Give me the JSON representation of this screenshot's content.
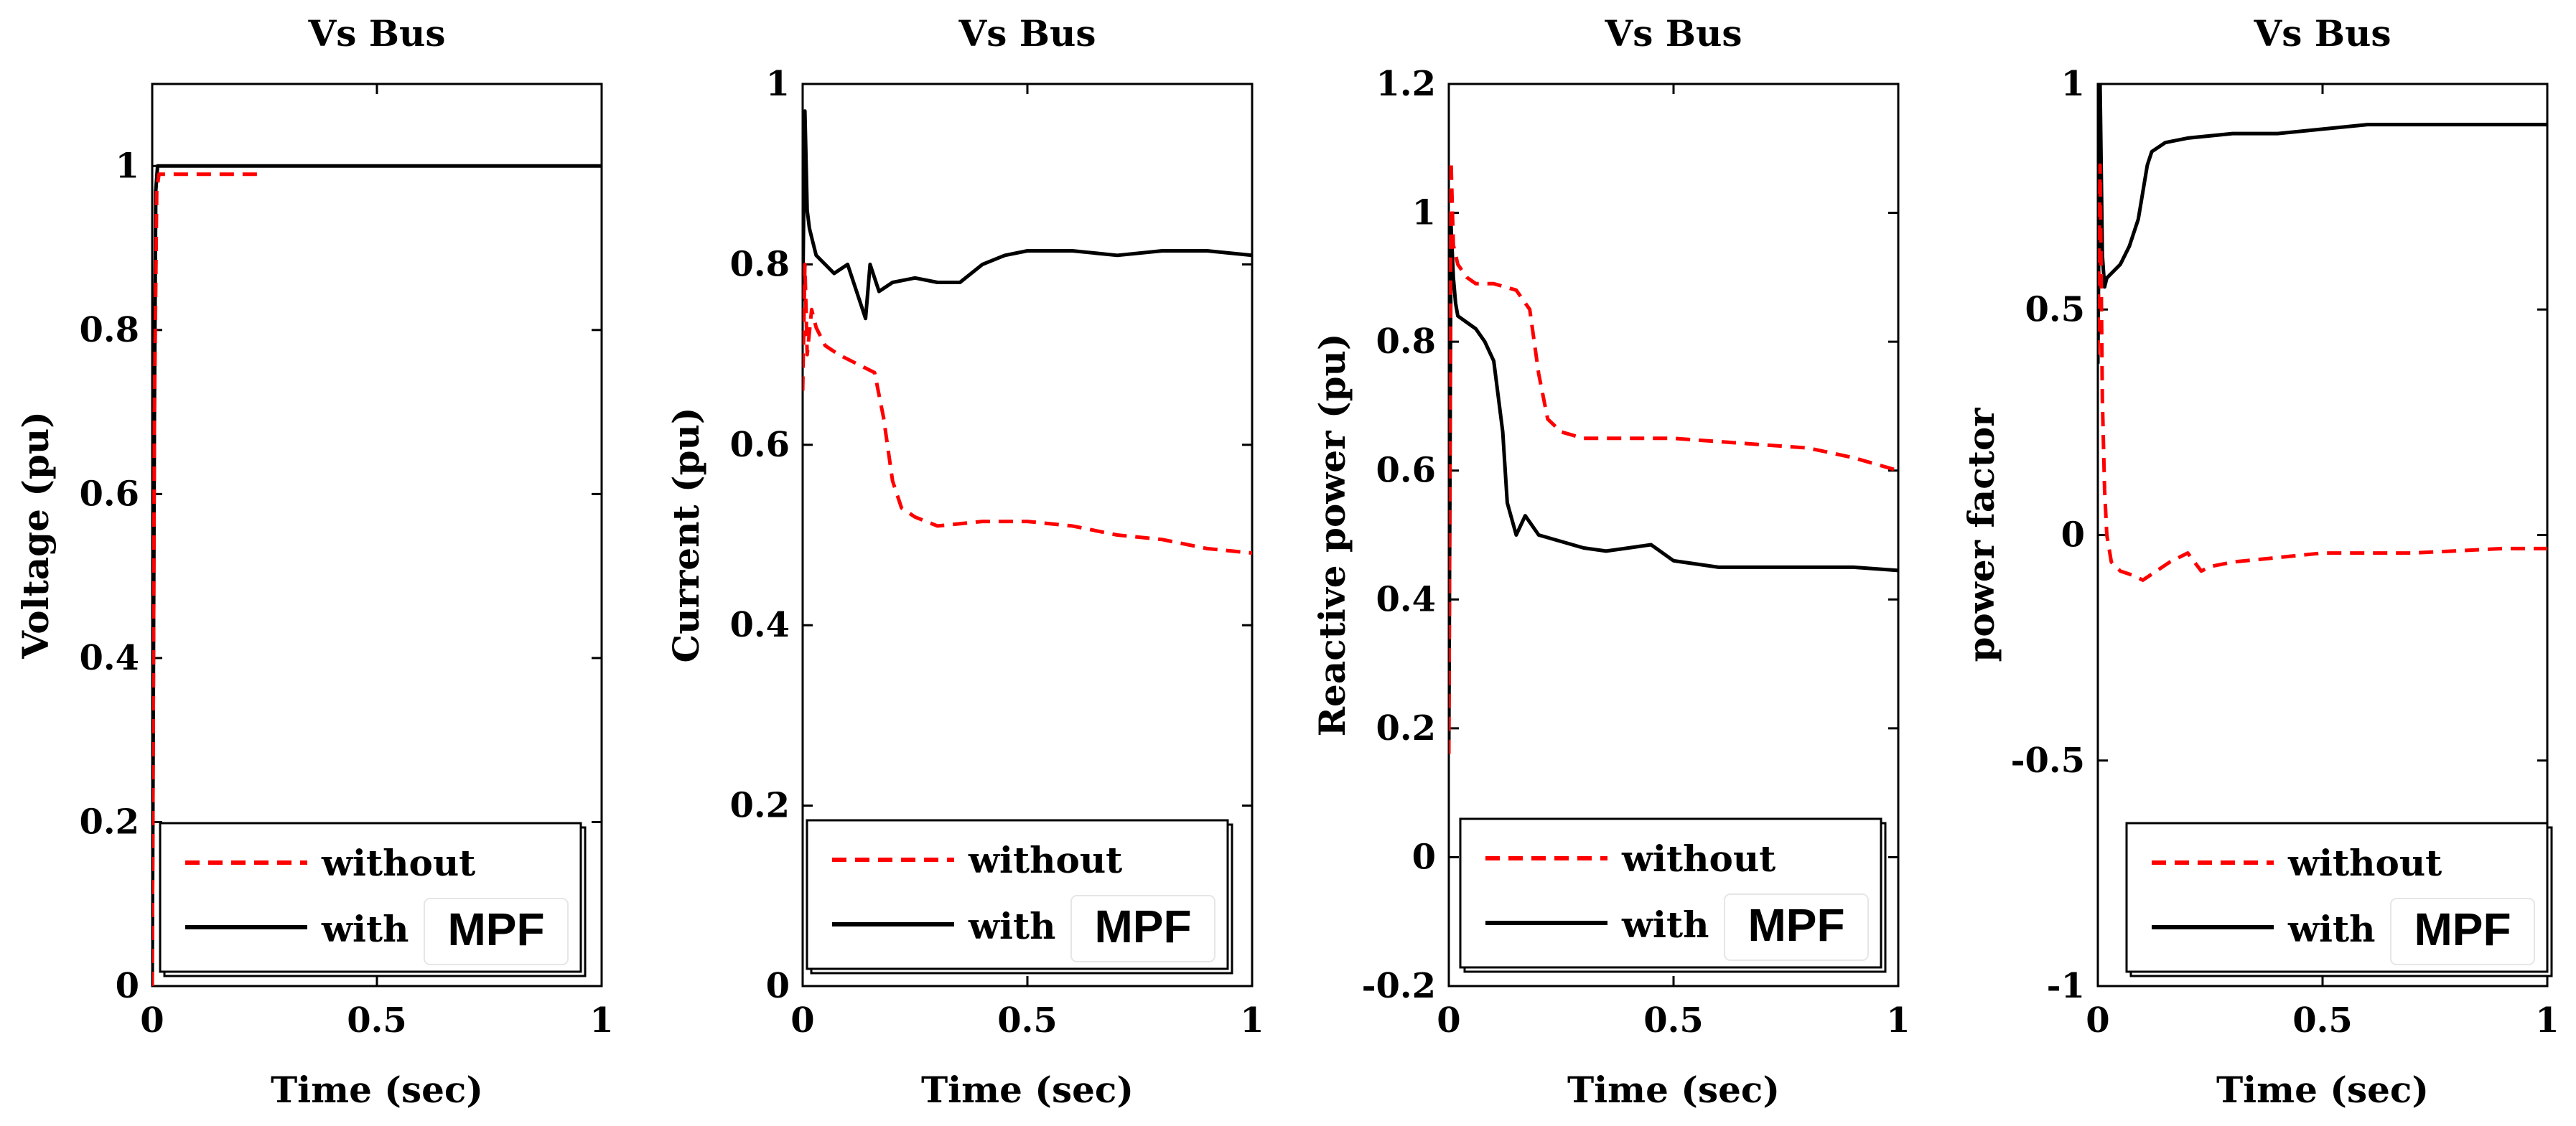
{
  "chart_data": [
    {
      "type": "line",
      "title": "Vs Bus",
      "xlabel": "Time (sec)",
      "ylabel": "Voltage (pu)",
      "xlim": [
        0,
        1
      ],
      "ylim": [
        0,
        1.1
      ],
      "xticks": [
        0,
        0.5,
        1
      ],
      "xtick_labels": [
        "0",
        "0.5",
        "1"
      ],
      "yticks": [
        0,
        0.2,
        0.4,
        0.6,
        0.8,
        1
      ],
      "ytick_labels": [
        "0",
        "0.2",
        "0.4",
        "0.6",
        "0.8",
        "1"
      ],
      "legend": {
        "location": "bottom",
        "entries": [
          "without",
          "with",
          "MPF"
        ]
      },
      "series": [
        {
          "name": "without",
          "color": "#ff0000",
          "style": "dashed",
          "x": [
            0,
            0.005,
            0.01,
            0.015,
            0.02,
            0.1,
            0.24
          ],
          "y": [
            0,
            0.7,
            0.97,
            0.99,
            0.99,
            0.99,
            0.99
          ]
        },
        {
          "name": "with",
          "color": "#000000",
          "style": "solid",
          "x": [
            0,
            0.005,
            0.008,
            0.012,
            0.02,
            0.05,
            0.3,
            0.6,
            1.0
          ],
          "y": [
            0,
            0.7,
            0.97,
            1.0,
            1.0,
            1.0,
            1.0,
            1.0,
            1.0
          ]
        }
      ]
    },
    {
      "type": "line",
      "title": "Vs Bus",
      "xlabel": "Time (sec)",
      "ylabel": "Current (pu)",
      "xlim": [
        0,
        1
      ],
      "ylim": [
        0,
        1
      ],
      "xticks": [
        0,
        0.5,
        1
      ],
      "xtick_labels": [
        "0",
        "0.5",
        "1"
      ],
      "yticks": [
        0,
        0.2,
        0.4,
        0.6,
        0.8,
        1
      ],
      "ytick_labels": [
        "0",
        "0.2",
        "0.4",
        "0.6",
        "0.8",
        "1"
      ],
      "legend": {
        "location": "bottom",
        "entries": [
          "without",
          "with",
          "MPF"
        ]
      },
      "series": [
        {
          "name": "without",
          "color": "#ff0000",
          "style": "dashed",
          "x": [
            0,
            0.005,
            0.01,
            0.02,
            0.03,
            0.05,
            0.08,
            0.12,
            0.16,
            0.18,
            0.2,
            0.22,
            0.25,
            0.3,
            0.4,
            0.5,
            0.6,
            0.7,
            0.8,
            0.9,
            1.0
          ],
          "y": [
            0.66,
            0.8,
            0.7,
            0.75,
            0.73,
            0.71,
            0.7,
            0.69,
            0.68,
            0.63,
            0.56,
            0.53,
            0.52,
            0.51,
            0.515,
            0.515,
            0.51,
            0.5,
            0.495,
            0.485,
            0.48
          ]
        },
        {
          "name": "with",
          "color": "#000000",
          "style": "solid",
          "x": [
            0,
            0.005,
            0.01,
            0.015,
            0.02,
            0.03,
            0.05,
            0.07,
            0.1,
            0.12,
            0.14,
            0.15,
            0.17,
            0.2,
            0.25,
            0.3,
            0.35,
            0.4,
            0.45,
            0.5,
            0.6,
            0.7,
            0.8,
            0.9,
            1.0
          ],
          "y": [
            0.76,
            0.97,
            0.86,
            0.84,
            0.83,
            0.81,
            0.8,
            0.79,
            0.8,
            0.77,
            0.74,
            0.8,
            0.77,
            0.78,
            0.785,
            0.78,
            0.78,
            0.8,
            0.81,
            0.815,
            0.815,
            0.81,
            0.815,
            0.815,
            0.81
          ]
        }
      ]
    },
    {
      "type": "line",
      "title": "Vs Bus",
      "xlabel": "Time (sec)",
      "ylabel": "Reactive power (pu)",
      "xlim": [
        0,
        1
      ],
      "ylim": [
        -0.2,
        1.2
      ],
      "xticks": [
        0,
        0.5,
        1
      ],
      "xtick_labels": [
        "0",
        "0.5",
        "1"
      ],
      "yticks": [
        -0.2,
        0,
        0.2,
        0.4,
        0.6,
        0.8,
        1,
        1.2
      ],
      "ytick_labels": [
        "-0.2",
        "0",
        "0.2",
        "0.4",
        "0.6",
        "0.8",
        "1",
        "1.2"
      ],
      "legend": {
        "location": "bottom",
        "entries": [
          "without",
          "with",
          "MPF"
        ]
      },
      "series": [
        {
          "name": "without",
          "color": "#ff0000",
          "style": "dashed",
          "x": [
            0,
            0.005,
            0.01,
            0.02,
            0.04,
            0.06,
            0.1,
            0.15,
            0.18,
            0.2,
            0.22,
            0.25,
            0.3,
            0.4,
            0.5,
            0.6,
            0.7,
            0.8,
            0.9,
            1.0
          ],
          "y": [
            0.16,
            1.08,
            0.95,
            0.92,
            0.9,
            0.89,
            0.89,
            0.88,
            0.85,
            0.75,
            0.68,
            0.66,
            0.65,
            0.65,
            0.65,
            0.645,
            0.64,
            0.635,
            0.62,
            0.6
          ]
        },
        {
          "name": "with",
          "color": "#000000",
          "style": "solid",
          "x": [
            0,
            0.005,
            0.01,
            0.015,
            0.02,
            0.04,
            0.06,
            0.08,
            0.1,
            0.12,
            0.13,
            0.15,
            0.17,
            0.2,
            0.25,
            0.3,
            0.35,
            0.4,
            0.45,
            0.5,
            0.6,
            0.7,
            0.8,
            0.9,
            1.0
          ],
          "y": [
            0.18,
            0.98,
            0.9,
            0.86,
            0.84,
            0.83,
            0.82,
            0.8,
            0.77,
            0.66,
            0.55,
            0.5,
            0.53,
            0.5,
            0.49,
            0.48,
            0.475,
            0.48,
            0.485,
            0.46,
            0.45,
            0.45,
            0.45,
            0.45,
            0.445
          ]
        }
      ]
    },
    {
      "type": "line",
      "title": "Vs Bus",
      "xlabel": "Time (sec)",
      "ylabel": "power factor",
      "xlim": [
        0,
        1
      ],
      "ylim": [
        -1,
        1
      ],
      "xticks": [
        0,
        0.5,
        1
      ],
      "xtick_labels": [
        "0",
        "0.5",
        "1"
      ],
      "yticks": [
        -1,
        -0.5,
        0,
        0.5,
        1
      ],
      "ytick_labels": [
        "-1",
        "-0.5",
        "0",
        "0.5",
        "1"
      ],
      "legend": {
        "location": "bottom",
        "entries": [
          "without",
          "with",
          "MPF"
        ]
      },
      "series": [
        {
          "name": "without",
          "color": "#ff0000",
          "style": "dashed",
          "x": [
            0,
            0.005,
            0.01,
            0.015,
            0.02,
            0.03,
            0.05,
            0.08,
            0.1,
            0.13,
            0.16,
            0.2,
            0.23,
            0.25,
            0.3,
            0.4,
            0.5,
            0.6,
            0.7,
            0.8,
            0.9,
            1.0
          ],
          "y": [
            0.4,
            0.82,
            0.3,
            0.1,
            0.0,
            -0.06,
            -0.08,
            -0.09,
            -0.1,
            -0.08,
            -0.06,
            -0.04,
            -0.08,
            -0.07,
            -0.06,
            -0.05,
            -0.04,
            -0.04,
            -0.04,
            -0.035,
            -0.03,
            -0.03
          ]
        },
        {
          "name": "with",
          "color": "#000000",
          "style": "solid",
          "x": [
            0,
            0.005,
            0.01,
            0.015,
            0.02,
            0.03,
            0.05,
            0.07,
            0.09,
            0.1,
            0.11,
            0.12,
            0.15,
            0.2,
            0.3,
            0.4,
            0.5,
            0.6,
            0.7,
            0.8,
            0.9,
            1.0
          ],
          "y": [
            0.38,
            1.0,
            0.62,
            0.55,
            0.57,
            0.58,
            0.6,
            0.64,
            0.7,
            0.76,
            0.82,
            0.85,
            0.87,
            0.88,
            0.89,
            0.89,
            0.9,
            0.91,
            0.91,
            0.91,
            0.91,
            0.91
          ]
        }
      ]
    }
  ]
}
